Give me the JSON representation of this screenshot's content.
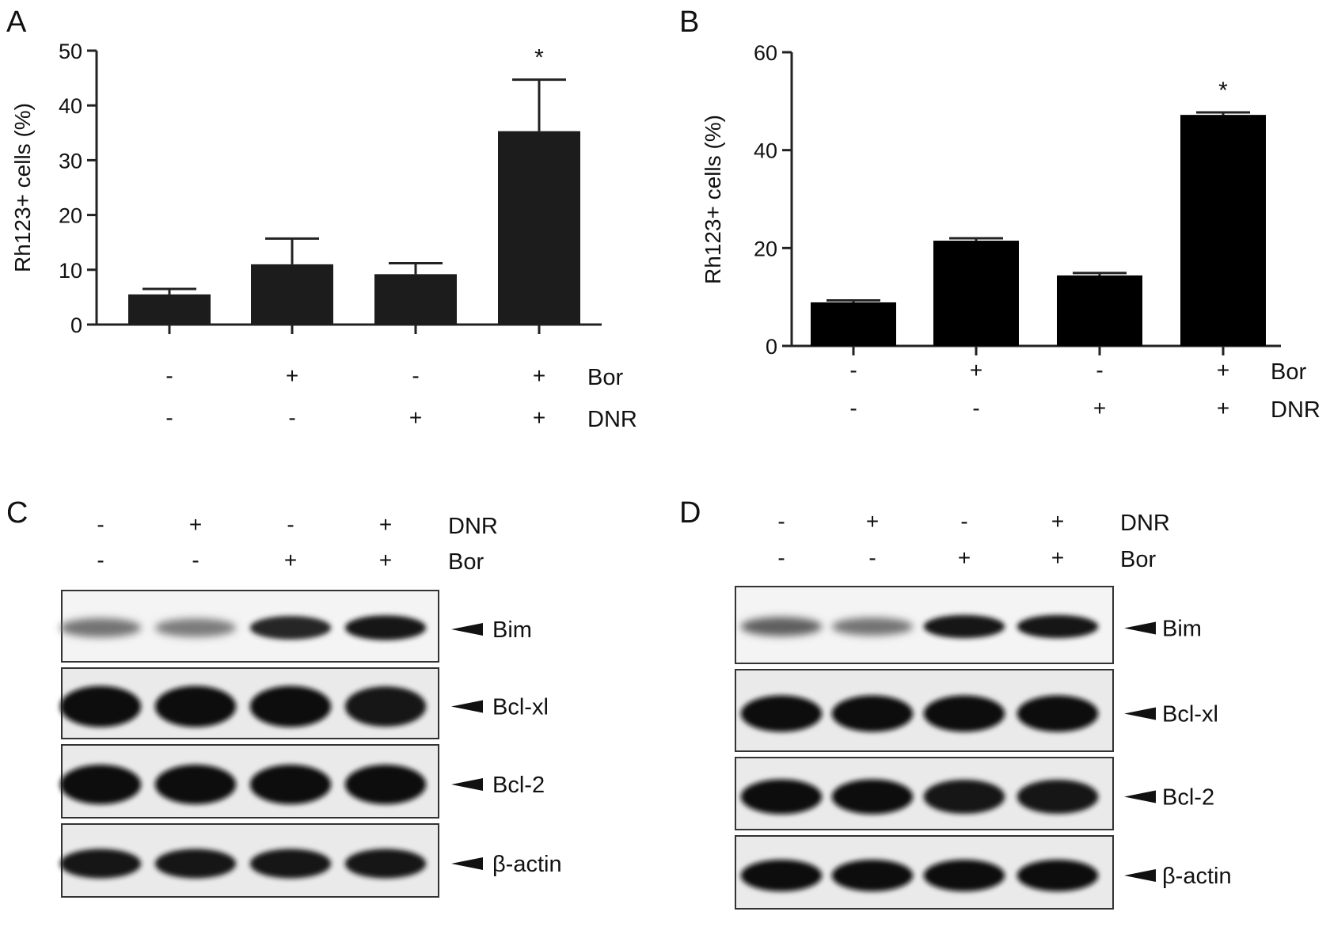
{
  "panels": {
    "A": "A",
    "B": "B",
    "C": "C",
    "D": "D"
  },
  "chart_data": [
    {
      "panel": "A",
      "type": "bar",
      "ylabel": "Rh123+ cells (%)",
      "ylim": [
        0,
        50
      ],
      "yticks": [
        "0",
        "10",
        "20",
        "30",
        "40",
        "50"
      ],
      "values": [
        5.5,
        11,
        9.2,
        35.3
      ],
      "errors": [
        1,
        4.7,
        2,
        9.4
      ],
      "significance": [
        "",
        "",
        "",
        "*"
      ],
      "bar_color": "#1c1c1c",
      "conditions": [
        {
          "label": "Bor",
          "signs": [
            "-",
            "+",
            "-",
            "+"
          ]
        },
        {
          "label": "DNR",
          "signs": [
            "-",
            "-",
            "+",
            "+"
          ]
        }
      ]
    },
    {
      "panel": "B",
      "type": "bar",
      "ylabel": "Rh123+ cells (%)",
      "ylim": [
        0,
        60
      ],
      "yticks": [
        "0",
        "20",
        "40",
        "60"
      ],
      "values": [
        8.9,
        21.5,
        14.4,
        47.2
      ],
      "errors": [
        0.4,
        0.5,
        0.5,
        0.5
      ],
      "significance": [
        "",
        "",
        "",
        "*"
      ],
      "bar_color": "#000000",
      "conditions": [
        {
          "label": "Bor",
          "signs": [
            "-",
            "+",
            "-",
            "+"
          ]
        },
        {
          "label": "DNR",
          "signs": [
            "-",
            "-",
            "+",
            "+"
          ]
        }
      ]
    }
  ],
  "blots": [
    {
      "panel": "C",
      "conditions": [
        {
          "label": "DNR",
          "signs": [
            "-",
            "+",
            "-",
            "+"
          ]
        },
        {
          "label": "Bor",
          "signs": [
            "-",
            "-",
            "+",
            "+"
          ]
        }
      ],
      "bands": [
        {
          "label": "Bim",
          "intensity": [
            0.45,
            0.4,
            0.85,
            0.95
          ]
        },
        {
          "label": "Bcl-xl",
          "intensity": [
            1,
            1,
            1,
            0.95
          ]
        },
        {
          "label": "Bcl-2",
          "intensity": [
            1,
            1,
            1,
            1
          ]
        },
        {
          "label": "β-actin",
          "intensity": [
            0.95,
            0.95,
            0.95,
            0.95
          ]
        }
      ]
    },
    {
      "panel": "D",
      "conditions": [
        {
          "label": "DNR",
          "signs": [
            "-",
            "+",
            "-",
            "+"
          ]
        },
        {
          "label": "Bor",
          "signs": [
            "-",
            "-",
            "+",
            "+"
          ]
        }
      ],
      "bands": [
        {
          "label": "Bim",
          "intensity": [
            0.55,
            0.45,
            0.95,
            0.95
          ]
        },
        {
          "label": "Bcl-xl",
          "intensity": [
            1,
            1,
            1,
            1
          ]
        },
        {
          "label": "Bcl-2",
          "intensity": [
            1,
            1,
            0.95,
            0.95
          ]
        },
        {
          "label": "β-actin",
          "intensity": [
            1,
            1,
            1,
            1
          ]
        }
      ]
    }
  ]
}
